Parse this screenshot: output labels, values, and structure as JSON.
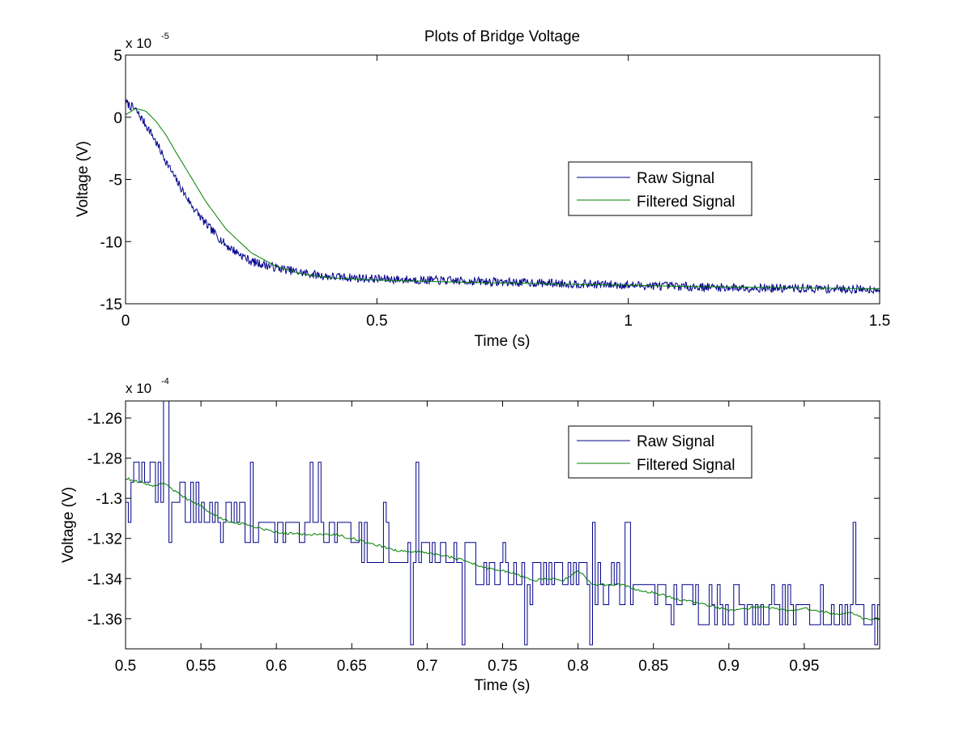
{
  "figure_title": "Plots of Bridge Voltage",
  "colors": {
    "raw": "#00008b",
    "filtered": "#007f00",
    "axis": "#000000",
    "background": "#ffffff"
  },
  "chart_data": [
    {
      "type": "line",
      "title": "Plots of Bridge Voltage",
      "xlabel": "Time (s)",
      "ylabel": "Voltage (V)",
      "exponent_base": "x 10",
      "exponent_power": "-5",
      "xlim": [
        0,
        1.5
      ],
      "ylim": [
        -15,
        5
      ],
      "x_ticks": [
        0,
        0.5,
        1,
        1.5
      ],
      "x_tick_labels": [
        "0",
        "0.5",
        "1",
        "1.5"
      ],
      "y_ticks": [
        5,
        0,
        -5,
        -10,
        -15
      ],
      "y_tick_labels": [
        "5",
        "0",
        "-5",
        "-10",
        "-15"
      ],
      "legend": [
        "Raw Signal",
        "Filtered Signal"
      ],
      "legend_location": "right",
      "series": [
        {
          "name": "Raw Signal",
          "noise": 0.35,
          "points": [
            [
              0,
              1.2
            ],
            [
              0.02,
              0.6
            ],
            [
              0.05,
              -1.2
            ],
            [
              0.08,
              -3.5
            ],
            [
              0.1,
              -5
            ],
            [
              0.13,
              -7
            ],
            [
              0.16,
              -8.6
            ],
            [
              0.2,
              -10.3
            ],
            [
              0.25,
              -11.6
            ],
            [
              0.3,
              -12.1
            ],
            [
              0.35,
              -12.5
            ],
            [
              0.4,
              -12.8
            ],
            [
              0.5,
              -13.0
            ],
            [
              0.6,
              -13.1
            ],
            [
              0.7,
              -13.2
            ],
            [
              0.8,
              -13.3
            ],
            [
              0.9,
              -13.4
            ],
            [
              1.0,
              -13.5
            ],
            [
              1.1,
              -13.6
            ],
            [
              1.2,
              -13.7
            ],
            [
              1.3,
              -13.75
            ],
            [
              1.4,
              -13.8
            ],
            [
              1.5,
              -13.85
            ]
          ]
        },
        {
          "name": "Filtered Signal",
          "noise": 0,
          "points": [
            [
              0,
              0.2
            ],
            [
              0.02,
              0.7
            ],
            [
              0.04,
              0.5
            ],
            [
              0.06,
              -0.3
            ],
            [
              0.08,
              -1.4
            ],
            [
              0.1,
              -2.8
            ],
            [
              0.13,
              -4.8
            ],
            [
              0.16,
              -6.8
            ],
            [
              0.2,
              -9.0
            ],
            [
              0.25,
              -10.9
            ],
            [
              0.3,
              -12.0
            ],
            [
              0.35,
              -12.6
            ],
            [
              0.4,
              -12.9
            ],
            [
              0.5,
              -13.1
            ],
            [
              0.6,
              -13.2
            ],
            [
              0.7,
              -13.3
            ],
            [
              0.8,
              -13.35
            ],
            [
              0.9,
              -13.45
            ],
            [
              1.0,
              -13.5
            ],
            [
              1.1,
              -13.6
            ],
            [
              1.2,
              -13.65
            ],
            [
              1.3,
              -13.7
            ],
            [
              1.4,
              -13.75
            ],
            [
              1.5,
              -13.8
            ]
          ]
        }
      ]
    },
    {
      "type": "line",
      "title": "",
      "xlabel": "Time (s)",
      "ylabel": "Voltage (V)",
      "exponent_base": "x 10",
      "exponent_power": "-4",
      "xlim": [
        0.5,
        1.0
      ],
      "ylim": [
        -1.375,
        -1.2515
      ],
      "x_ticks": [
        0.5,
        0.55,
        0.6,
        0.65,
        0.7,
        0.75,
        0.8,
        0.85,
        0.9,
        0.95
      ],
      "x_tick_labels": [
        "0.5",
        "0.55",
        "0.6",
        "0.65",
        "0.7",
        "0.75",
        "0.8",
        "0.85",
        "0.9",
        "0.95"
      ],
      "y_ticks": [
        -1.26,
        -1.28,
        -1.3,
        -1.32,
        -1.34,
        -1.36
      ],
      "y_tick_labels": [
        "-1.26",
        "-1.28",
        "-1.3",
        "-1.32",
        "-1.34",
        "-1.36"
      ],
      "legend": [
        "Raw Signal",
        "Filtered Signal"
      ],
      "legend_location": "top-right",
      "series": [
        {
          "name": "Raw Signal",
          "quantized_levels": [
            -1.282,
            -1.292,
            -1.302,
            -1.312,
            -1.322,
            -1.332,
            -1.343,
            -1.353,
            -1.363,
            -1.373
          ],
          "spikes": [
            [
              0.526,
              -1.251
            ],
            [
              0.622,
              -1.282
            ],
            [
              0.628,
              -1.282
            ],
            [
              0.693,
              -1.282
            ],
            [
              0.689,
              -1.373
            ],
            [
              0.723,
              -1.373
            ],
            [
              0.765,
              -1.373
            ],
            [
              0.808,
              -1.373
            ],
            [
              0.832,
              -1.312
            ],
            [
              0.983,
              -1.312
            ]
          ]
        },
        {
          "name": "Filtered Signal",
          "points": [
            [
              0.5,
              -1.29
            ],
            [
              0.51,
              -1.292
            ],
            [
              0.52,
              -1.294
            ],
            [
              0.525,
              -1.292
            ],
            [
              0.53,
              -1.295
            ],
            [
              0.54,
              -1.3
            ],
            [
              0.55,
              -1.304
            ],
            [
              0.56,
              -1.309
            ],
            [
              0.57,
              -1.312
            ],
            [
              0.58,
              -1.313
            ],
            [
              0.6,
              -1.317
            ],
            [
              0.62,
              -1.318
            ],
            [
              0.64,
              -1.318
            ],
            [
              0.66,
              -1.322
            ],
            [
              0.68,
              -1.326
            ],
            [
              0.7,
              -1.327
            ],
            [
              0.72,
              -1.33
            ],
            [
              0.74,
              -1.335
            ],
            [
              0.75,
              -1.336
            ],
            [
              0.76,
              -1.338
            ],
            [
              0.77,
              -1.341
            ],
            [
              0.78,
              -1.34
            ],
            [
              0.79,
              -1.341
            ],
            [
              0.8,
              -1.336
            ],
            [
              0.81,
              -1.343
            ],
            [
              0.82,
              -1.343
            ],
            [
              0.83,
              -1.343
            ],
            [
              0.84,
              -1.346
            ],
            [
              0.85,
              -1.347
            ],
            [
              0.86,
              -1.349
            ],
            [
              0.87,
              -1.351
            ],
            [
              0.88,
              -1.352
            ],
            [
              0.89,
              -1.354
            ],
            [
              0.9,
              -1.356
            ],
            [
              0.91,
              -1.355
            ],
            [
              0.92,
              -1.354
            ],
            [
              0.93,
              -1.355
            ],
            [
              0.94,
              -1.356
            ],
            [
              0.95,
              -1.355
            ],
            [
              0.96,
              -1.356
            ],
            [
              0.97,
              -1.358
            ],
            [
              0.98,
              -1.357
            ],
            [
              0.99,
              -1.36
            ],
            [
              1.0,
              -1.36
            ]
          ]
        }
      ]
    }
  ]
}
